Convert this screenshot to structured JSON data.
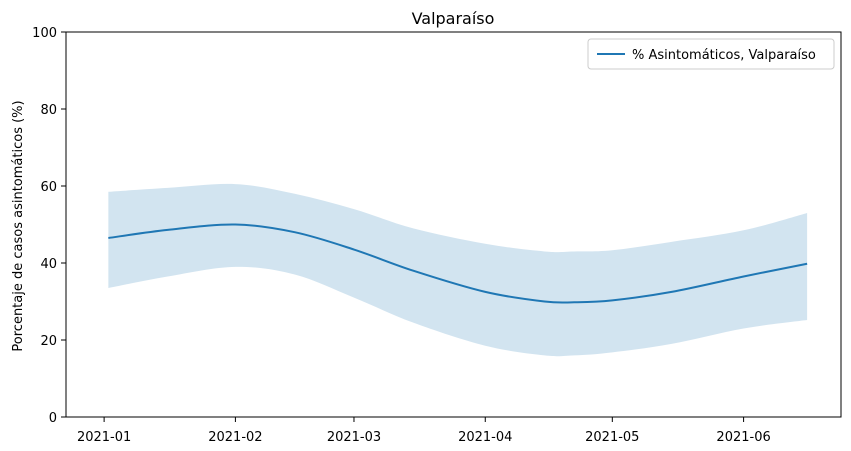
{
  "chart_data": {
    "type": "line",
    "title": "Valparaíso",
    "xlabel": "",
    "ylabel": "Porcentaje de casos asintomáticos (%)",
    "ylim": [
      0,
      100
    ],
    "xlim": [
      "2020-12-23",
      "2021-06-24"
    ],
    "y_ticks": [
      0,
      20,
      40,
      60,
      80,
      100
    ],
    "x_ticks": [
      "2021-01",
      "2021-02",
      "2021-03",
      "2021-04",
      "2021-05",
      "2021-06"
    ],
    "grid": false,
    "legend_position": "top-right",
    "colors": {
      "line": "#1f77b4",
      "band": "#1f77b4"
    },
    "series": [
      {
        "name": "% Asintomáticos, Valparaíso",
        "x": [
          "2021-01-02",
          "2021-01-16",
          "2021-02-01",
          "2021-02-15",
          "2021-03-01",
          "2021-03-15",
          "2021-04-01",
          "2021-04-15",
          "2021-04-22",
          "2021-05-01",
          "2021-05-15",
          "2021-06-01",
          "2021-06-16"
        ],
        "y": [
          46.5,
          48.6,
          50.0,
          48.0,
          43.5,
          38.0,
          32.5,
          30.0,
          29.8,
          30.3,
          32.5,
          36.5,
          39.8
        ],
        "lower": [
          33.5,
          36.5,
          39.0,
          37.0,
          31.0,
          24.5,
          18.5,
          16.0,
          16.0,
          16.8,
          19.0,
          23.0,
          25.2
        ],
        "upper": [
          58.5,
          59.5,
          60.5,
          58.0,
          54.0,
          49.0,
          45.0,
          43.0,
          43.0,
          43.3,
          45.5,
          48.5,
          53.0
        ]
      }
    ]
  }
}
